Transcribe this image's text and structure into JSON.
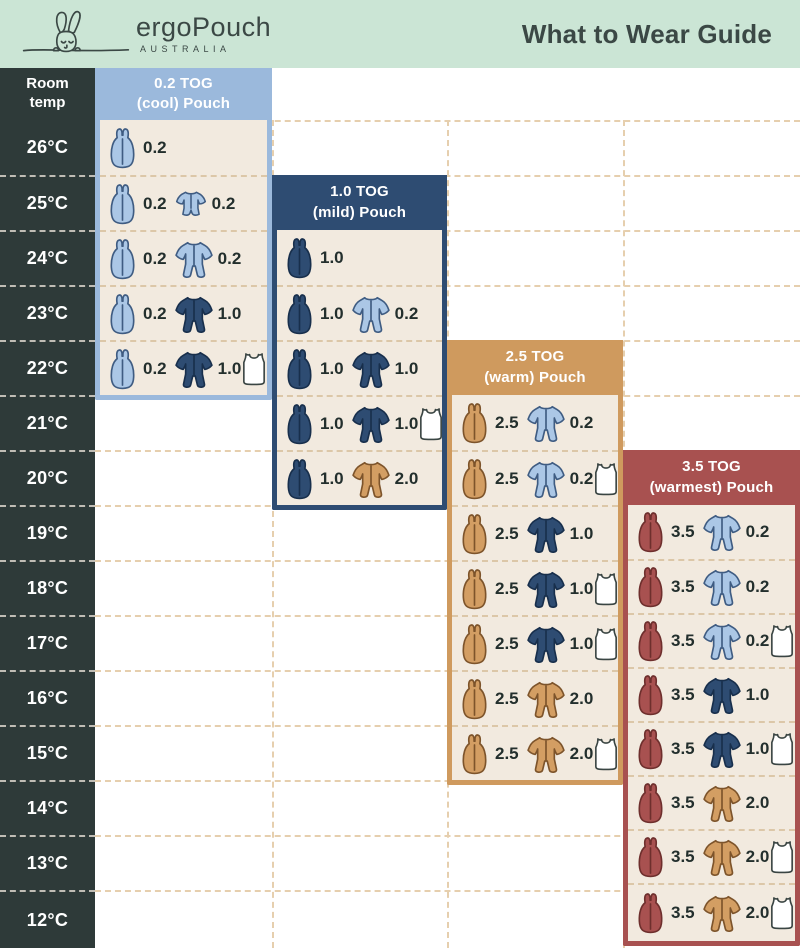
{
  "header": {
    "brand": "ergoPouch",
    "brand_sub": "AUSTRALIA",
    "title": "What to Wear Guide"
  },
  "temp_column": {
    "header_line1": "Room",
    "header_line2": "temp",
    "temps": [
      "26°C",
      "25°C",
      "24°C",
      "23°C",
      "22°C",
      "21°C",
      "20°C",
      "19°C",
      "18°C",
      "17°C",
      "16°C",
      "15°C",
      "14°C",
      "13°C",
      "12°C"
    ]
  },
  "colors": {
    "mint_header": "#cbe5d5",
    "charcoal": "#2e3a39",
    "ink": "#3b4845",
    "value_text": "#232f2d",
    "cream_panel": "#f2eadf",
    "grid_dash": "#e6cfae",
    "row_dash": "#dcc7a8",
    "panel_blue": "#9bb9dc",
    "panel_navy": "#2e4c72",
    "panel_tan": "#cf9a5e",
    "panel_red": "#a85150",
    "icon_themes": {
      "blue": {
        "fill": "#abc7e6",
        "stroke": "#3f5c82"
      },
      "navy": {
        "fill": "#2e4c72",
        "stroke": "#182f4c"
      },
      "tan": {
        "fill": "#d39e63",
        "stroke": "#7d542b"
      },
      "red": {
        "fill": "#a85150",
        "stroke": "#6e2f2d"
      },
      "white": {
        "fill": "#ffffff",
        "stroke": "#3a4543"
      }
    }
  },
  "panels": [
    {
      "tog": "0.2",
      "label_line1": "0.2 TOG",
      "label_line2": "(cool) Pouch",
      "theme": "blue",
      "rows": [
        {
          "temp": "26°C",
          "items": [
            {
              "icon": "pouch",
              "theme": "blue",
              "tog": "0.2"
            }
          ]
        },
        {
          "temp": "25°C",
          "items": [
            {
              "icon": "pouch",
              "theme": "blue",
              "tog": "0.2"
            },
            {
              "icon": "romper",
              "theme": "blue",
              "tog": "0.2"
            }
          ]
        },
        {
          "temp": "24°C",
          "items": [
            {
              "icon": "pouch",
              "theme": "blue",
              "tog": "0.2"
            },
            {
              "icon": "onesie",
              "theme": "blue",
              "tog": "0.2"
            }
          ]
        },
        {
          "temp": "23°C",
          "items": [
            {
              "icon": "pouch",
              "theme": "blue",
              "tog": "0.2"
            },
            {
              "icon": "onesie",
              "theme": "navy",
              "tog": "1.0"
            }
          ]
        },
        {
          "temp": "22°C",
          "items": [
            {
              "icon": "pouch",
              "theme": "blue",
              "tog": "0.2"
            },
            {
              "icon": "onesie",
              "theme": "navy",
              "tog": "1.0"
            },
            {
              "icon": "singlet",
              "theme": "white"
            }
          ]
        }
      ]
    },
    {
      "tog": "1.0",
      "label_line1": "1.0 TOG",
      "label_line2": "(mild) Pouch",
      "theme": "navy",
      "rows": [
        {
          "temp": "24°C",
          "items": [
            {
              "icon": "pouch",
              "theme": "navy",
              "tog": "1.0"
            }
          ]
        },
        {
          "temp": "23°C",
          "items": [
            {
              "icon": "pouch",
              "theme": "navy",
              "tog": "1.0"
            },
            {
              "icon": "onesie",
              "theme": "blue",
              "tog": "0.2"
            }
          ]
        },
        {
          "temp": "22°C",
          "items": [
            {
              "icon": "pouch",
              "theme": "navy",
              "tog": "1.0"
            },
            {
              "icon": "onesie",
              "theme": "navy",
              "tog": "1.0"
            }
          ]
        },
        {
          "temp": "21°C",
          "items": [
            {
              "icon": "pouch",
              "theme": "navy",
              "tog": "1.0"
            },
            {
              "icon": "onesie",
              "theme": "navy",
              "tog": "1.0"
            },
            {
              "icon": "singlet",
              "theme": "white"
            }
          ]
        },
        {
          "temp": "20°C",
          "items": [
            {
              "icon": "pouch",
              "theme": "navy",
              "tog": "1.0"
            },
            {
              "icon": "onesie",
              "theme": "tan",
              "tog": "2.0"
            }
          ]
        }
      ]
    },
    {
      "tog": "2.5",
      "label_line1": "2.5 TOG",
      "label_line2": "(warm) Pouch",
      "theme": "tan",
      "rows": [
        {
          "temp": "21°C",
          "items": [
            {
              "icon": "pouch",
              "theme": "tan",
              "tog": "2.5"
            },
            {
              "icon": "onesie",
              "theme": "blue",
              "tog": "0.2"
            }
          ]
        },
        {
          "temp": "20°C",
          "items": [
            {
              "icon": "pouch",
              "theme": "tan",
              "tog": "2.5"
            },
            {
              "icon": "onesie",
              "theme": "blue",
              "tog": "0.2"
            },
            {
              "icon": "singlet",
              "theme": "white"
            }
          ]
        },
        {
          "temp": "19°C",
          "items": [
            {
              "icon": "pouch",
              "theme": "tan",
              "tog": "2.5"
            },
            {
              "icon": "onesie",
              "theme": "navy",
              "tog": "1.0"
            }
          ]
        },
        {
          "temp": "18°C",
          "items": [
            {
              "icon": "pouch",
              "theme": "tan",
              "tog": "2.5"
            },
            {
              "icon": "onesie",
              "theme": "navy",
              "tog": "1.0"
            },
            {
              "icon": "singlet",
              "theme": "white"
            }
          ]
        },
        {
          "temp": "17°C",
          "items": [
            {
              "icon": "pouch",
              "theme": "tan",
              "tog": "2.5"
            },
            {
              "icon": "onesie",
              "theme": "navy",
              "tog": "1.0"
            },
            {
              "icon": "singlet",
              "theme": "white"
            }
          ]
        },
        {
          "temp": "16°C",
          "items": [
            {
              "icon": "pouch",
              "theme": "tan",
              "tog": "2.5"
            },
            {
              "icon": "onesie",
              "theme": "tan",
              "tog": "2.0"
            }
          ]
        },
        {
          "temp": "15°C",
          "items": [
            {
              "icon": "pouch",
              "theme": "tan",
              "tog": "2.5"
            },
            {
              "icon": "onesie",
              "theme": "tan",
              "tog": "2.0"
            },
            {
              "icon": "singlet",
              "theme": "white"
            }
          ]
        }
      ]
    },
    {
      "tog": "3.5",
      "label_line1": "3.5 TOG",
      "label_line2": "(warmest) Pouch",
      "theme": "red",
      "rows": [
        {
          "temp": "19°C",
          "items": [
            {
              "icon": "pouch",
              "theme": "red",
              "tog": "3.5"
            },
            {
              "icon": "onesie",
              "theme": "blue",
              "tog": "0.2"
            }
          ]
        },
        {
          "temp": "18°C",
          "items": [
            {
              "icon": "pouch",
              "theme": "red",
              "tog": "3.5"
            },
            {
              "icon": "onesie",
              "theme": "blue",
              "tog": "0.2"
            }
          ]
        },
        {
          "temp": "17°C",
          "items": [
            {
              "icon": "pouch",
              "theme": "red",
              "tog": "3.5"
            },
            {
              "icon": "onesie",
              "theme": "blue",
              "tog": "0.2"
            },
            {
              "icon": "singlet",
              "theme": "white"
            }
          ]
        },
        {
          "temp": "16°C",
          "items": [
            {
              "icon": "pouch",
              "theme": "red",
              "tog": "3.5"
            },
            {
              "icon": "onesie",
              "theme": "navy",
              "tog": "1.0"
            }
          ]
        },
        {
          "temp": "15°C",
          "items": [
            {
              "icon": "pouch",
              "theme": "red",
              "tog": "3.5"
            },
            {
              "icon": "onesie",
              "theme": "navy",
              "tog": "1.0"
            },
            {
              "icon": "singlet",
              "theme": "white"
            }
          ]
        },
        {
          "temp": "14°C",
          "items": [
            {
              "icon": "pouch",
              "theme": "red",
              "tog": "3.5"
            },
            {
              "icon": "onesie",
              "theme": "tan",
              "tog": "2.0"
            }
          ]
        },
        {
          "temp": "13°C",
          "items": [
            {
              "icon": "pouch",
              "theme": "red",
              "tog": "3.5"
            },
            {
              "icon": "onesie",
              "theme": "tan",
              "tog": "2.0"
            },
            {
              "icon": "singlet",
              "theme": "white"
            }
          ]
        },
        {
          "temp": "12°C",
          "items": [
            {
              "icon": "pouch",
              "theme": "red",
              "tog": "3.5"
            },
            {
              "icon": "onesie",
              "theme": "tan",
              "tog": "2.0"
            },
            {
              "icon": "singlet",
              "theme": "white"
            }
          ]
        }
      ]
    }
  ]
}
